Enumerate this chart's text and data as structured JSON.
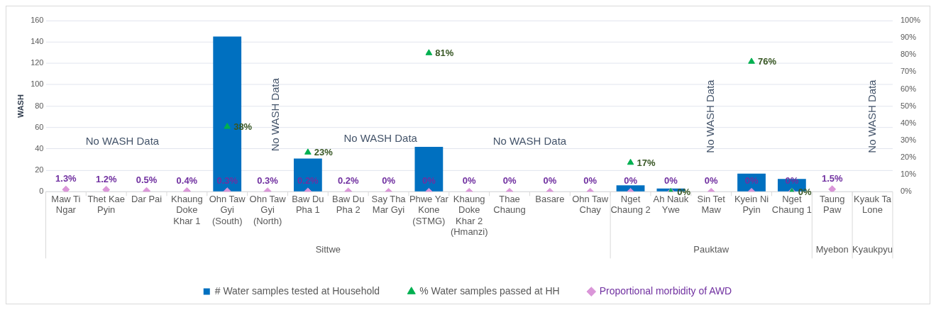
{
  "chart_data": {
    "type": "bar",
    "ylabel": "WASH",
    "categories": [
      "Maw Ti Ngar",
      "Thet Kae Pyin",
      "Dar Pai",
      "Khaung Doke Khar 1",
      "Ohn Taw Gyi (South)",
      "Ohn Taw Gyi (North)",
      "Baw Du Pha 1",
      "Baw Du Pha 2",
      "Say Tha Mar Gyi",
      "Phwe Yar Kone (STMG)",
      "Khaung Doke Khar 2 (Hmanzi)",
      "Thae Chaung",
      "Basare",
      "Ohn Taw Chay",
      "Nget Chaung 2",
      "Ah Nauk Ywe",
      "Sin Tet Maw",
      "Kyein Ni Pyin",
      "Nget Chaung 1",
      "Taung Paw",
      "Kyauk Ta Lone"
    ],
    "series": [
      {
        "name": "# Water samples tested at Household",
        "color": "#0070c0",
        "values": [
          null,
          null,
          null,
          null,
          145,
          null,
          31,
          null,
          null,
          42,
          null,
          null,
          null,
          null,
          6,
          3,
          null,
          17,
          12,
          null,
          null
        ]
      },
      {
        "name": "% Water samples passed at HH",
        "type": "scatter",
        "marker": "triangle",
        "axis": "y2",
        "color": "#00b050",
        "values": [
          null,
          null,
          null,
          null,
          38,
          null,
          23,
          null,
          null,
          81,
          null,
          null,
          null,
          null,
          17,
          0,
          null,
          76,
          0,
          null,
          null
        ],
        "value_labels": [
          null,
          null,
          null,
          null,
          "38%",
          null,
          "23%",
          null,
          null,
          "81%",
          null,
          null,
          null,
          null,
          "17%",
          "0%",
          null,
          "76%",
          "0%",
          null,
          null
        ]
      },
      {
        "name": "Proportional morbidity of AWD",
        "type": "scatter",
        "marker": "diamond",
        "axis": "y2",
        "color": "#da96d8",
        "values": [
          1.3,
          1.2,
          0.5,
          0.4,
          0.3,
          0.3,
          0.2,
          0.2,
          0,
          0,
          0,
          0,
          0,
          0,
          0,
          0,
          0,
          0,
          0,
          1.5,
          null
        ],
        "value_labels": [
          "1.3%",
          "1.2%",
          "0.5%",
          "0.4%",
          "0.3%",
          "0.3%",
          "0.2%",
          "0.2%",
          "0%",
          "0%",
          "0%",
          "0%",
          "0%",
          "0%",
          "0%",
          "0%",
          "0%",
          "0%",
          "0%",
          "1.5%",
          null
        ]
      }
    ],
    "ylim": [
      0,
      160
    ],
    "yticks": [
      0,
      20,
      40,
      60,
      80,
      100,
      120,
      140,
      160
    ],
    "y2lim": [
      0,
      100
    ],
    "y2ticks": [
      {
        "value": 0,
        "label": "0%"
      },
      {
        "value": 10,
        "label": "10%"
      },
      {
        "value": 20,
        "label": "20%"
      },
      {
        "value": 30,
        "label": "30%"
      },
      {
        "value": 40,
        "label": "40%"
      },
      {
        "value": 50,
        "label": "50%"
      },
      {
        "value": 60,
        "label": "60%"
      },
      {
        "value": 70,
        "label": "70%"
      },
      {
        "value": 80,
        "label": "80%"
      },
      {
        "value": 90,
        "label": "90%"
      },
      {
        "value": 100,
        "label": "100%"
      }
    ],
    "grid": "y",
    "legend": "bottom",
    "annotations": [
      "No WASH Data",
      "No WASH Data",
      "No WASH Data",
      "No WASH Data",
      "No WASH Data",
      "No WASH Data",
      "Sittwe",
      "Pauktaw",
      "Myebon",
      "Kyaukpyu"
    ]
  }
}
